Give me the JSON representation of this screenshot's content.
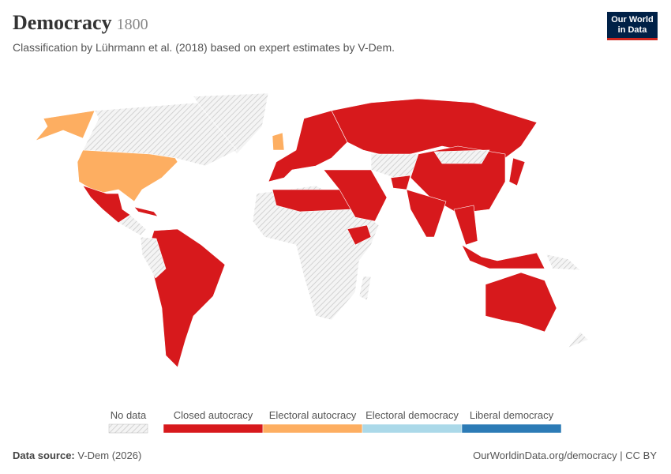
{
  "header": {
    "title": "Democracy",
    "year": "1800",
    "subtitle": "Classification by Lührmann et al. (2018) based on expert estimates by V-Dem.",
    "logo": [
      "Our World",
      "in Data"
    ]
  },
  "legend": {
    "no_data": "No data",
    "items": [
      {
        "label": "Closed autocracy",
        "color": "#d7191c"
      },
      {
        "label": "Electoral autocracy",
        "color": "#fdae61"
      },
      {
        "label": "Electoral democracy",
        "color": "#abd9e9"
      },
      {
        "label": "Liberal democracy",
        "color": "#2c7bb6"
      }
    ]
  },
  "footer": {
    "source_label": "Data source:",
    "source": "V-Dem (2026)",
    "url": "OurWorldinData.org/democracy",
    "license": "CC BY"
  }
}
